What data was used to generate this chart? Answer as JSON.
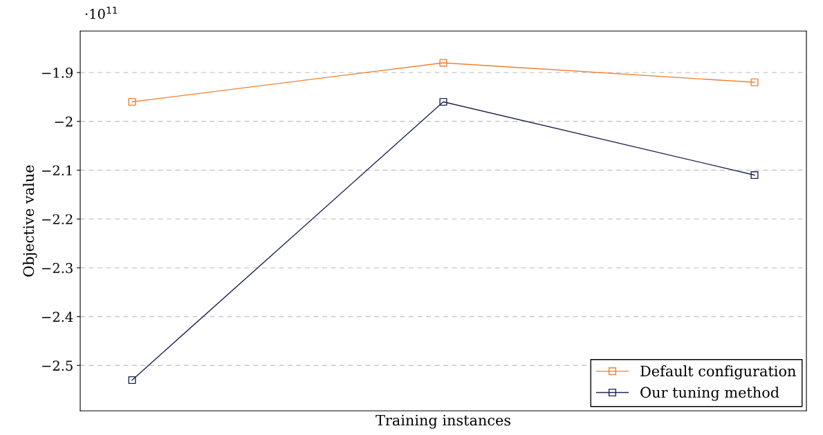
{
  "chart_data": {
    "type": "line",
    "xlabel": "Training instances",
    "ylabel": "Objective value",
    "annotations": [
      "·10$^{11}$"
    ],
    "categories": [
      null,
      null,
      null
    ],
    "series": [
      {
        "name": "Default configuration",
        "color": "#f07f2e",
        "values": [
          -1.96,
          -1.88,
          -1.92
        ]
      },
      {
        "name": "Our tuning method",
        "color": "#1c2551",
        "values": [
          -2.53,
          -1.96,
          -2.11
        ]
      }
    ],
    "ylim": [
      -2.593,
      -1.815
    ],
    "yticks": [
      {
        "value": -2.5,
        "label": "−2.5"
      },
      {
        "value": -2.4,
        "label": "−2.4"
      },
      {
        "value": -2.3,
        "label": "−2.3"
      },
      {
        "value": -2.2,
        "label": "−2.2"
      },
      {
        "value": -2.1,
        "label": "−2.1"
      },
      {
        "value": -2,
        "label": "−2"
      },
      {
        "value": -1.9,
        "label": "−1.9"
      }
    ],
    "grid": "y",
    "legend": "bottom right",
    "marker": "square",
    "line_style": "solid"
  }
}
